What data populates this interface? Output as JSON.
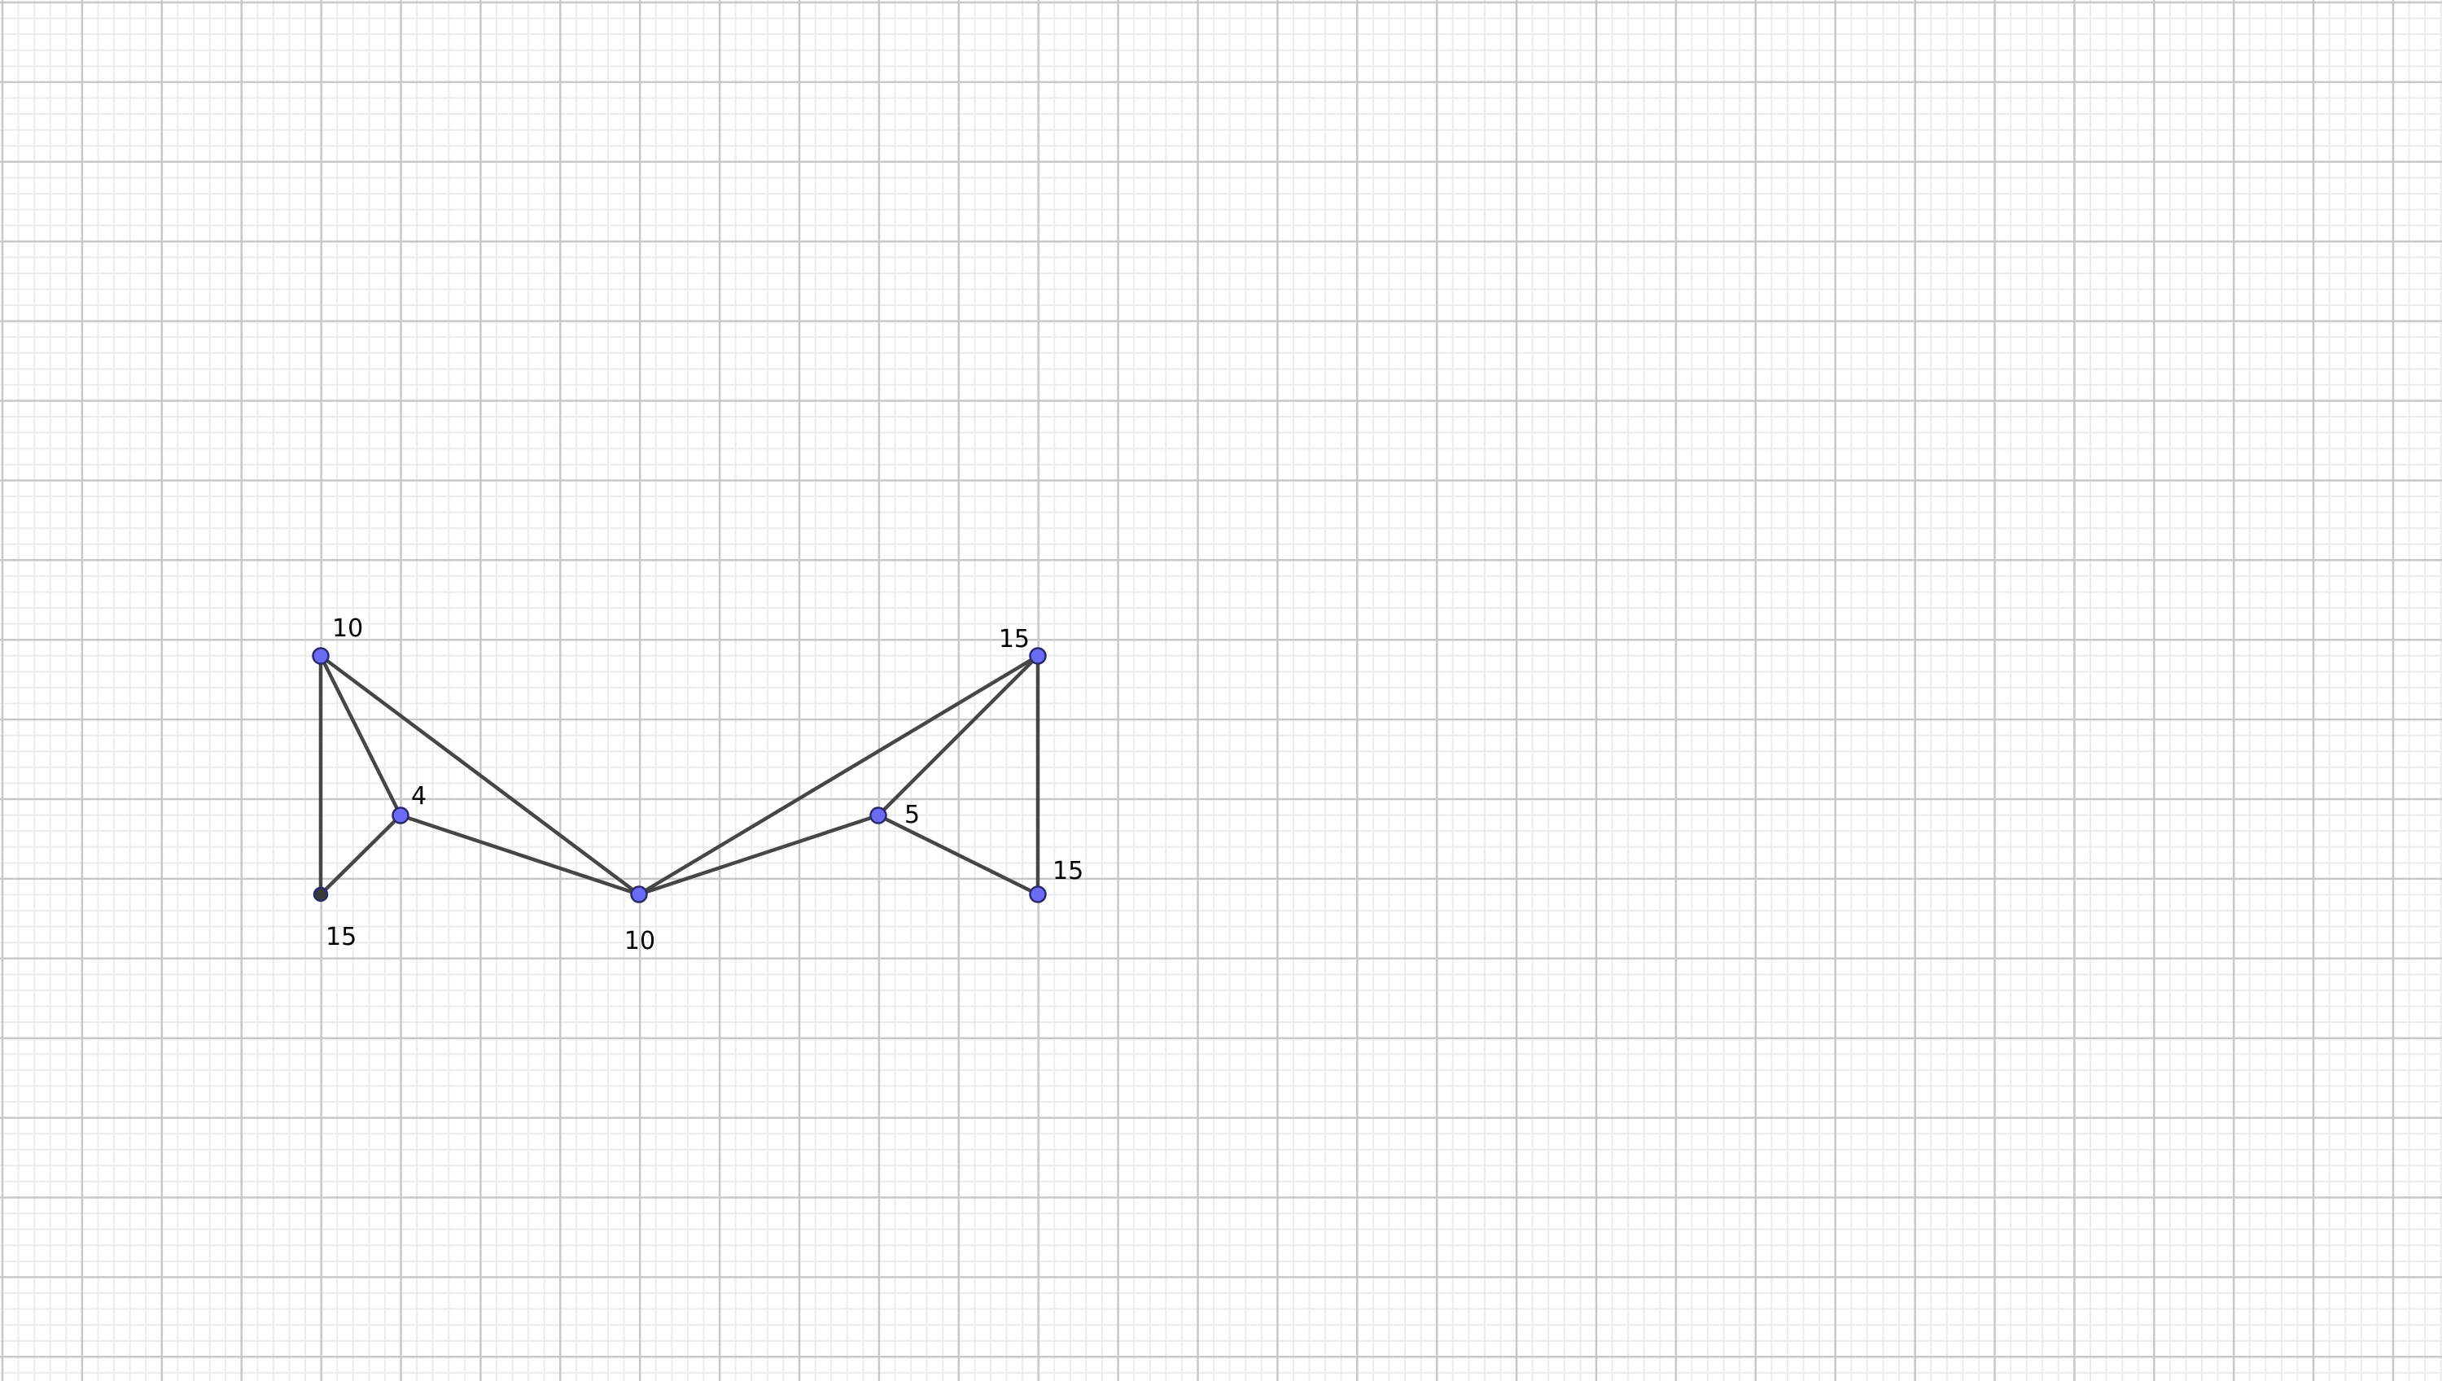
{
  "colors": {
    "background": "#ffffff",
    "grid_minor": "#ececec",
    "grid_major": "#c8c8c8",
    "edge": "#464646",
    "vertex_default": "#6b6bf5",
    "vertex_dark": "#3a3a3a"
  },
  "graph": {
    "vertices": [
      {
        "id": "A",
        "label": "10",
        "color": "#6b6bf5"
      },
      {
        "id": "B",
        "label": "15",
        "color": "#3a3a3a"
      },
      {
        "id": "C",
        "label": "4",
        "color": "#6b6bf5"
      },
      {
        "id": "D",
        "label": "10",
        "color": "#6b6bf5"
      },
      {
        "id": "E",
        "label": "5",
        "color": "#6b6bf5"
      },
      {
        "id": "F",
        "label": "15",
        "color": "#6b6bf5"
      },
      {
        "id": "G",
        "label": "15",
        "color": "#6b6bf5"
      }
    ],
    "edges": [
      [
        "A",
        "B"
      ],
      [
        "A",
        "C"
      ],
      [
        "A",
        "D"
      ],
      [
        "B",
        "C"
      ],
      [
        "C",
        "D"
      ],
      [
        "D",
        "E"
      ],
      [
        "D",
        "F"
      ],
      [
        "E",
        "F"
      ],
      [
        "E",
        "G"
      ],
      [
        "F",
        "G"
      ]
    ]
  }
}
